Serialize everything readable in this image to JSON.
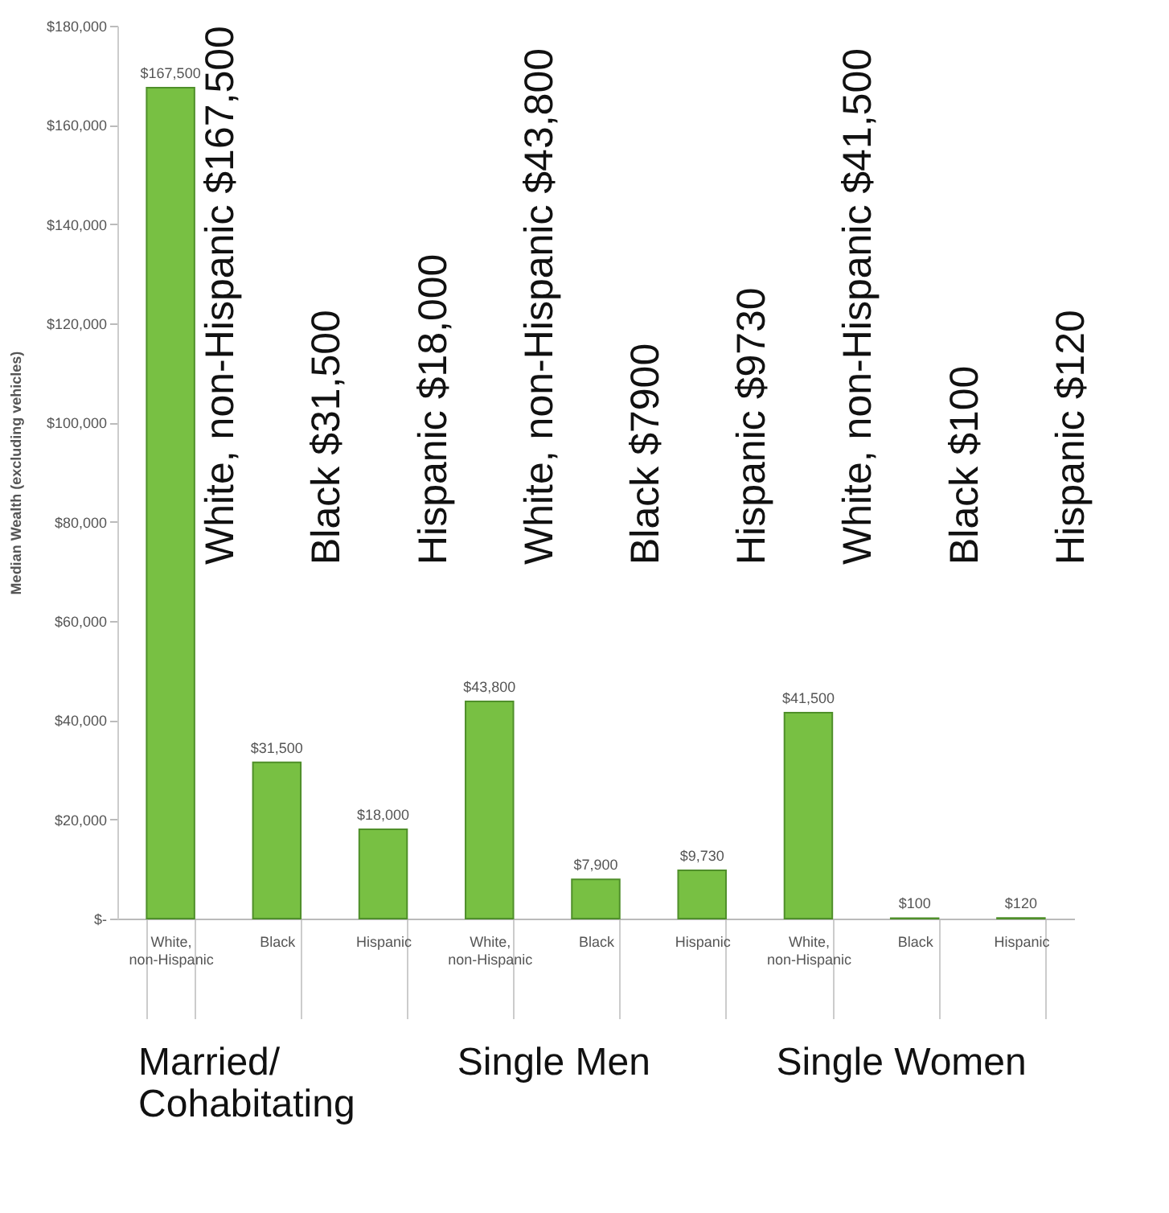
{
  "chart_data": {
    "type": "bar",
    "ylabel": "Median Wealth (excluding vehicles)",
    "categories": [
      "White, non-Hispanic",
      "Black",
      "Hispanic",
      "White, non-Hispanic",
      "Black",
      "Hispanic",
      "White, non-Hispanic",
      "Black",
      "Hispanic"
    ],
    "values": [
      167500,
      31500,
      18000,
      43800,
      7900,
      9730,
      41500,
      100,
      120
    ],
    "value_labels": [
      "$167,500",
      "$31,500",
      "$18,000",
      "$43,800",
      "$7,900",
      "$9,730",
      "$41,500",
      "$100",
      "$120"
    ],
    "color": "#78c043",
    "ylim": [
      0,
      180000
    ],
    "yticks": [
      {
        "value": 0,
        "label": "$-"
      },
      {
        "value": 20000,
        "label": "$20,000"
      },
      {
        "value": 40000,
        "label": "$40,000"
      },
      {
        "value": 60000,
        "label": "$60,000"
      },
      {
        "value": 80000,
        "label": "$80,000"
      },
      {
        "value": 100000,
        "label": "$100,000"
      },
      {
        "value": 120000,
        "label": "$120,000"
      },
      {
        "value": 140000,
        "label": "$140,000"
      },
      {
        "value": 160000,
        "label": "$160,000"
      },
      {
        "value": 180000,
        "label": "$180,000"
      }
    ],
    "annotations": [
      "White, non-Hispanic $167,500",
      "Black  $31,500",
      "Hispanic $18,000",
      "White, non-Hispanic $43,800",
      "Black $7900",
      "Hispanic  $9730",
      "White, non-Hispanic  $41,500",
      "Black  $100",
      "Hispanic $120",
      "Married/\nCohabitating",
      "Single Men",
      "Single Women"
    ]
  }
}
